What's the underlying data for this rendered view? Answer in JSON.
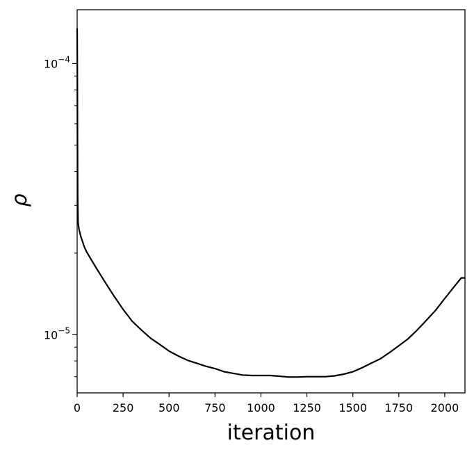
{
  "chart_data": {
    "type": "line",
    "xlabel": "iteration",
    "ylabel": "ρ",
    "yscale": "log",
    "xlim": [
      0,
      2110
    ],
    "ylim": [
      6.1e-06,
      0.000158
    ],
    "grid": false,
    "x_ticks": [
      0,
      250,
      500,
      750,
      1000,
      1250,
      1500,
      1750,
      2000
    ],
    "x_tick_labels": [
      "0",
      "250",
      "500",
      "750",
      "1000",
      "1250",
      "1500",
      "1750",
      "2000"
    ],
    "y_ticks": [
      1e-05,
      0.0001
    ],
    "y_tick_labels": [
      {
        "base": "10",
        "exp": "−5"
      },
      {
        "base": "10",
        "exp": "−4"
      }
    ],
    "series": [
      {
        "color": "#000000",
        "x": [
          0,
          1,
          2,
          3,
          5,
          10,
          20,
          30,
          40,
          50,
          75,
          100,
          150,
          200,
          250,
          300,
          350,
          400,
          450,
          500,
          550,
          600,
          650,
          700,
          750,
          800,
          850,
          900,
          950,
          1000,
          1050,
          1100,
          1150,
          1200,
          1250,
          1300,
          1350,
          1400,
          1450,
          1500,
          1550,
          1600,
          1650,
          1700,
          1750,
          1800,
          1850,
          1900,
          1950,
          2000,
          2050,
          2090,
          2110
        ],
        "y": [
          0.000135,
          0.0001,
          5.2e-05,
          3.2e-05,
          2.6e-05,
          2.45e-05,
          2.3e-05,
          2.2e-05,
          2.1e-05,
          2.03e-05,
          1.9e-05,
          1.78e-05,
          1.57e-05,
          1.39e-05,
          1.24e-05,
          1.12e-05,
          1.04e-05,
          9.7e-06,
          9.2e-06,
          8.7e-06,
          8.35e-06,
          8.05e-06,
          7.85e-06,
          7.65e-06,
          7.5e-06,
          7.3e-06,
          7.2e-06,
          7.1e-06,
          7.07e-06,
          7.07e-06,
          7.07e-06,
          7.03e-06,
          6.98e-06,
          6.98e-06,
          7e-06,
          7e-06,
          7e-06,
          7.05e-06,
          7.15e-06,
          7.3e-06,
          7.55e-06,
          7.85e-06,
          8.15e-06,
          8.6e-06,
          9.1e-06,
          9.65e-06,
          1.04e-05,
          1.13e-05,
          1.23e-05,
          1.36e-05,
          1.5e-05,
          1.62e-05,
          1.62e-05
        ]
      }
    ]
  }
}
